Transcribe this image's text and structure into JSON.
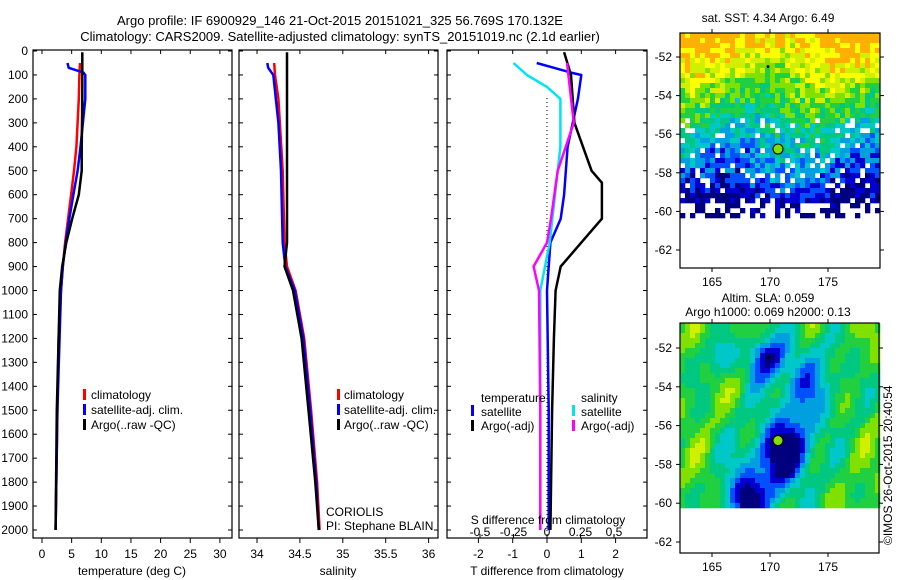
{
  "header": {
    "title_line1": "Argo profile: IF 6900929_146 21-Oct-2015 20151021_325 56.769S 170.132E",
    "title_line2": "Climatology: CARS2009. Satellite-adjusted climatology: synTS_20151019.nc (2.1d earlier)"
  },
  "chart_data": [
    {
      "type": "line",
      "id": "temperature",
      "xlabel": "temperature (deg C)",
      "ylabel": "depth",
      "xlim": [
        -1.5,
        32
      ],
      "ylim": [
        2035,
        0
      ],
      "xticks": [
        0,
        5,
        10,
        15,
        20,
        25,
        30
      ],
      "yticks": [
        0,
        100,
        200,
        300,
        400,
        500,
        600,
        700,
        800,
        900,
        1000,
        1100,
        1200,
        1300,
        1400,
        1500,
        1600,
        1700,
        1800,
        1900,
        2000
      ],
      "legend": [
        "climatology",
        "satellite-adj. clim.",
        "Argo(..raw -QC)"
      ],
      "series": [
        {
          "name": "climatology",
          "color": "#ff0000",
          "depth": [
            50,
            100,
            200,
            300,
            400,
            500,
            600,
            700,
            800,
            900,
            1000,
            1200,
            1500,
            2000
          ],
          "values": [
            6.4,
            6.3,
            6.2,
            6.0,
            5.8,
            5.4,
            4.9,
            4.4,
            3.9,
            3.5,
            3.2,
            2.8,
            2.6,
            2.3
          ]
        },
        {
          "name": "satellite-adj. clim.",
          "color": "#0000ff",
          "depth": [
            50,
            70,
            90,
            100,
            200,
            300,
            400,
            500,
            600,
            700,
            800,
            900,
            1000,
            1500,
            2000
          ],
          "values": [
            4.3,
            4.5,
            7.0,
            7.3,
            7.3,
            6.9,
            6.5,
            6.0,
            5.3,
            4.6,
            4.0,
            3.5,
            3.2,
            2.6,
            2.3
          ]
        },
        {
          "name": "Argo(..raw -QC)",
          "color": "#000000",
          "depth": [
            5,
            100,
            200,
            400,
            500,
            600,
            700,
            800,
            900,
            1000,
            1200,
            1500,
            2000
          ],
          "values": [
            6.8,
            6.8,
            6.8,
            6.7,
            6.7,
            6.2,
            5.1,
            4.1,
            3.4,
            3.0,
            2.8,
            2.5,
            2.3
          ]
        }
      ]
    },
    {
      "type": "line",
      "id": "salinity",
      "xlabel": "salinity",
      "xlim": [
        33.79,
        36.12
      ],
      "ylim": [
        2035,
        0
      ],
      "xticks": [
        34,
        34.5,
        35,
        35.5,
        36
      ],
      "legend": [
        "climatology",
        "satellite-adj. clim.",
        "Argo(..raw -QC)"
      ],
      "annotation": [
        "CORIOLIS",
        "PI: Stephane BLAIN"
      ],
      "series": [
        {
          "name": "climatology",
          "color": "#ff0000",
          "depth": [
            50,
            100,
            200,
            500,
            800,
            900,
            1000,
            1200,
            1500,
            1800,
            2000
          ],
          "values": [
            34.2,
            34.21,
            34.25,
            34.3,
            34.32,
            34.35,
            34.45,
            34.55,
            34.63,
            34.7,
            34.73
          ]
        },
        {
          "name": "satellite-adj. clim.",
          "color": "#0000ff",
          "depth": [
            50,
            70,
            100,
            300,
            500,
            800,
            900,
            1000,
            1200,
            1500,
            1800,
            2000
          ],
          "values": [
            34.12,
            34.13,
            34.19,
            34.25,
            34.28,
            34.3,
            34.33,
            34.44,
            34.54,
            34.62,
            34.69,
            34.72
          ]
        },
        {
          "name": "Argo(..raw -QC)",
          "color": "#000000",
          "depth": [
            5,
            100,
            800,
            900,
            1000,
            1200,
            1500,
            1800,
            2000
          ],
          "values": [
            34.35,
            34.35,
            34.35,
            34.32,
            34.42,
            34.52,
            34.6,
            34.68,
            34.72
          ]
        }
      ]
    },
    {
      "type": "line",
      "id": "difference",
      "xlabel": "T difference from climatology",
      "x2label": "S difference from climatology",
      "xlim": [
        -2.94,
        2.94
      ],
      "xticks": [
        -2,
        -1,
        0,
        1,
        2
      ],
      "x2ticks": [
        -0.5,
        -0.25,
        0,
        0.25,
        0.5
      ],
      "legend_headers": [
        "temperature",
        "salinity"
      ],
      "legend": [
        "satellite",
        "Argo(-adj)",
        "satellite",
        "Argo(-adj)"
      ],
      "series": [
        {
          "name": "T satellite",
          "axis": "T",
          "color": "#0000ff",
          "depth": [
            50,
            70,
            90,
            100,
            200,
            400,
            600,
            700,
            800,
            1000,
            1500,
            2000
          ],
          "values": [
            -0.3,
            0.2,
            0.7,
            1.0,
            0.9,
            0.6,
            0.5,
            0.4,
            0.1,
            0.0,
            0.05,
            0.05
          ]
        },
        {
          "name": "T Argo(-adj)",
          "axis": "T",
          "color": "#000000",
          "depth": [
            5,
            100,
            300,
            500,
            550,
            600,
            700,
            800,
            900,
            1000,
            1200,
            1500,
            2000
          ],
          "values": [
            0.5,
            0.7,
            0.8,
            1.3,
            1.6,
            1.6,
            1.6,
            1.0,
            0.4,
            0.25,
            0.2,
            0.15,
            0.1
          ]
        },
        {
          "name": "S satellite",
          "axis": "S",
          "color": "#00e5ee",
          "depth": [
            50,
            100,
            150,
            200,
            400,
            600,
            800,
            1000,
            1500,
            2000
          ],
          "values": [
            -0.25,
            -0.15,
            0.0,
            0.1,
            0.1,
            0.06,
            0.02,
            -0.05,
            -0.05,
            -0.05
          ]
        },
        {
          "name": "S Argo(-adj)",
          "axis": "S",
          "color": "#ff00ff",
          "depth": [
            50,
            100,
            300,
            500,
            700,
            800,
            900,
            1000,
            1500,
            2000
          ],
          "values": [
            0.15,
            0.16,
            0.2,
            0.08,
            0.03,
            0.0,
            -0.1,
            -0.06,
            -0.05,
            -0.05
          ]
        }
      ]
    }
  ],
  "maps": [
    {
      "title": "sat. SST: 4.34 Argo: 6.49",
      "lon_ticks": [
        "165",
        "170",
        "175"
      ],
      "lat_ticks": [
        "-52",
        "-54",
        "-56",
        "-58",
        "-60",
        "-62"
      ]
    },
    {
      "title1": "Altim. SLA: 0.059",
      "title2": "Argo h1000: 0.069 h2000: 0.13",
      "lon_ticks": [
        "165",
        "170",
        "175"
      ],
      "lat_ticks": [
        "-52",
        "-54",
        "-56",
        "-58",
        "-60",
        "-62"
      ]
    }
  ],
  "credit": "©IMOS 26-Oct-2015 20:40:54"
}
